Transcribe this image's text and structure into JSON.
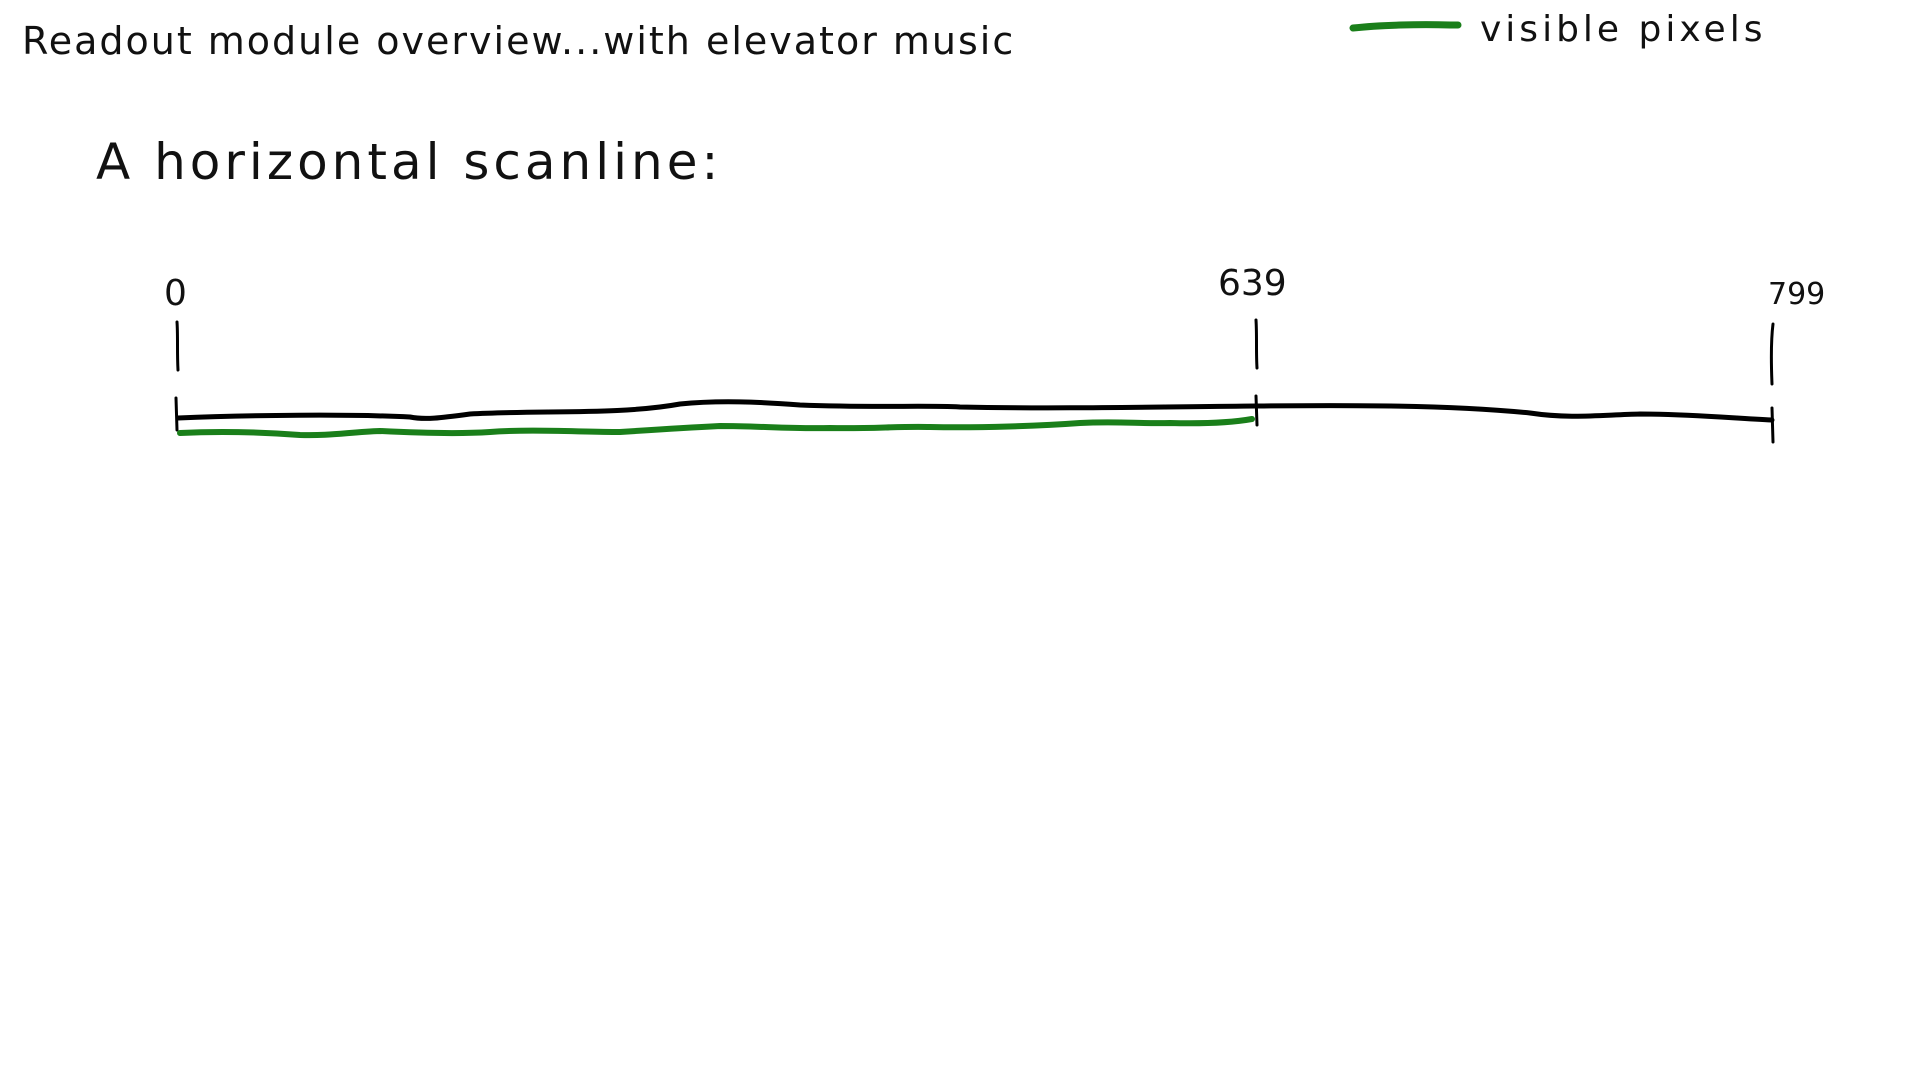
{
  "title": "Readout module overview...with elevator music",
  "heading": "A horizontal scanline:",
  "legend": {
    "label": "visible pixels",
    "color": "#1a7f1a"
  },
  "scanline": {
    "ticks": [
      {
        "label": "0",
        "value": 0
      },
      {
        "label": "639",
        "value": 639
      },
      {
        "label": "799",
        "value": 799
      }
    ],
    "total_range": [
      0,
      799
    ],
    "visible_range": [
      0,
      639
    ],
    "line_color": "#000000",
    "visible_color": "#1a7f1a"
  }
}
